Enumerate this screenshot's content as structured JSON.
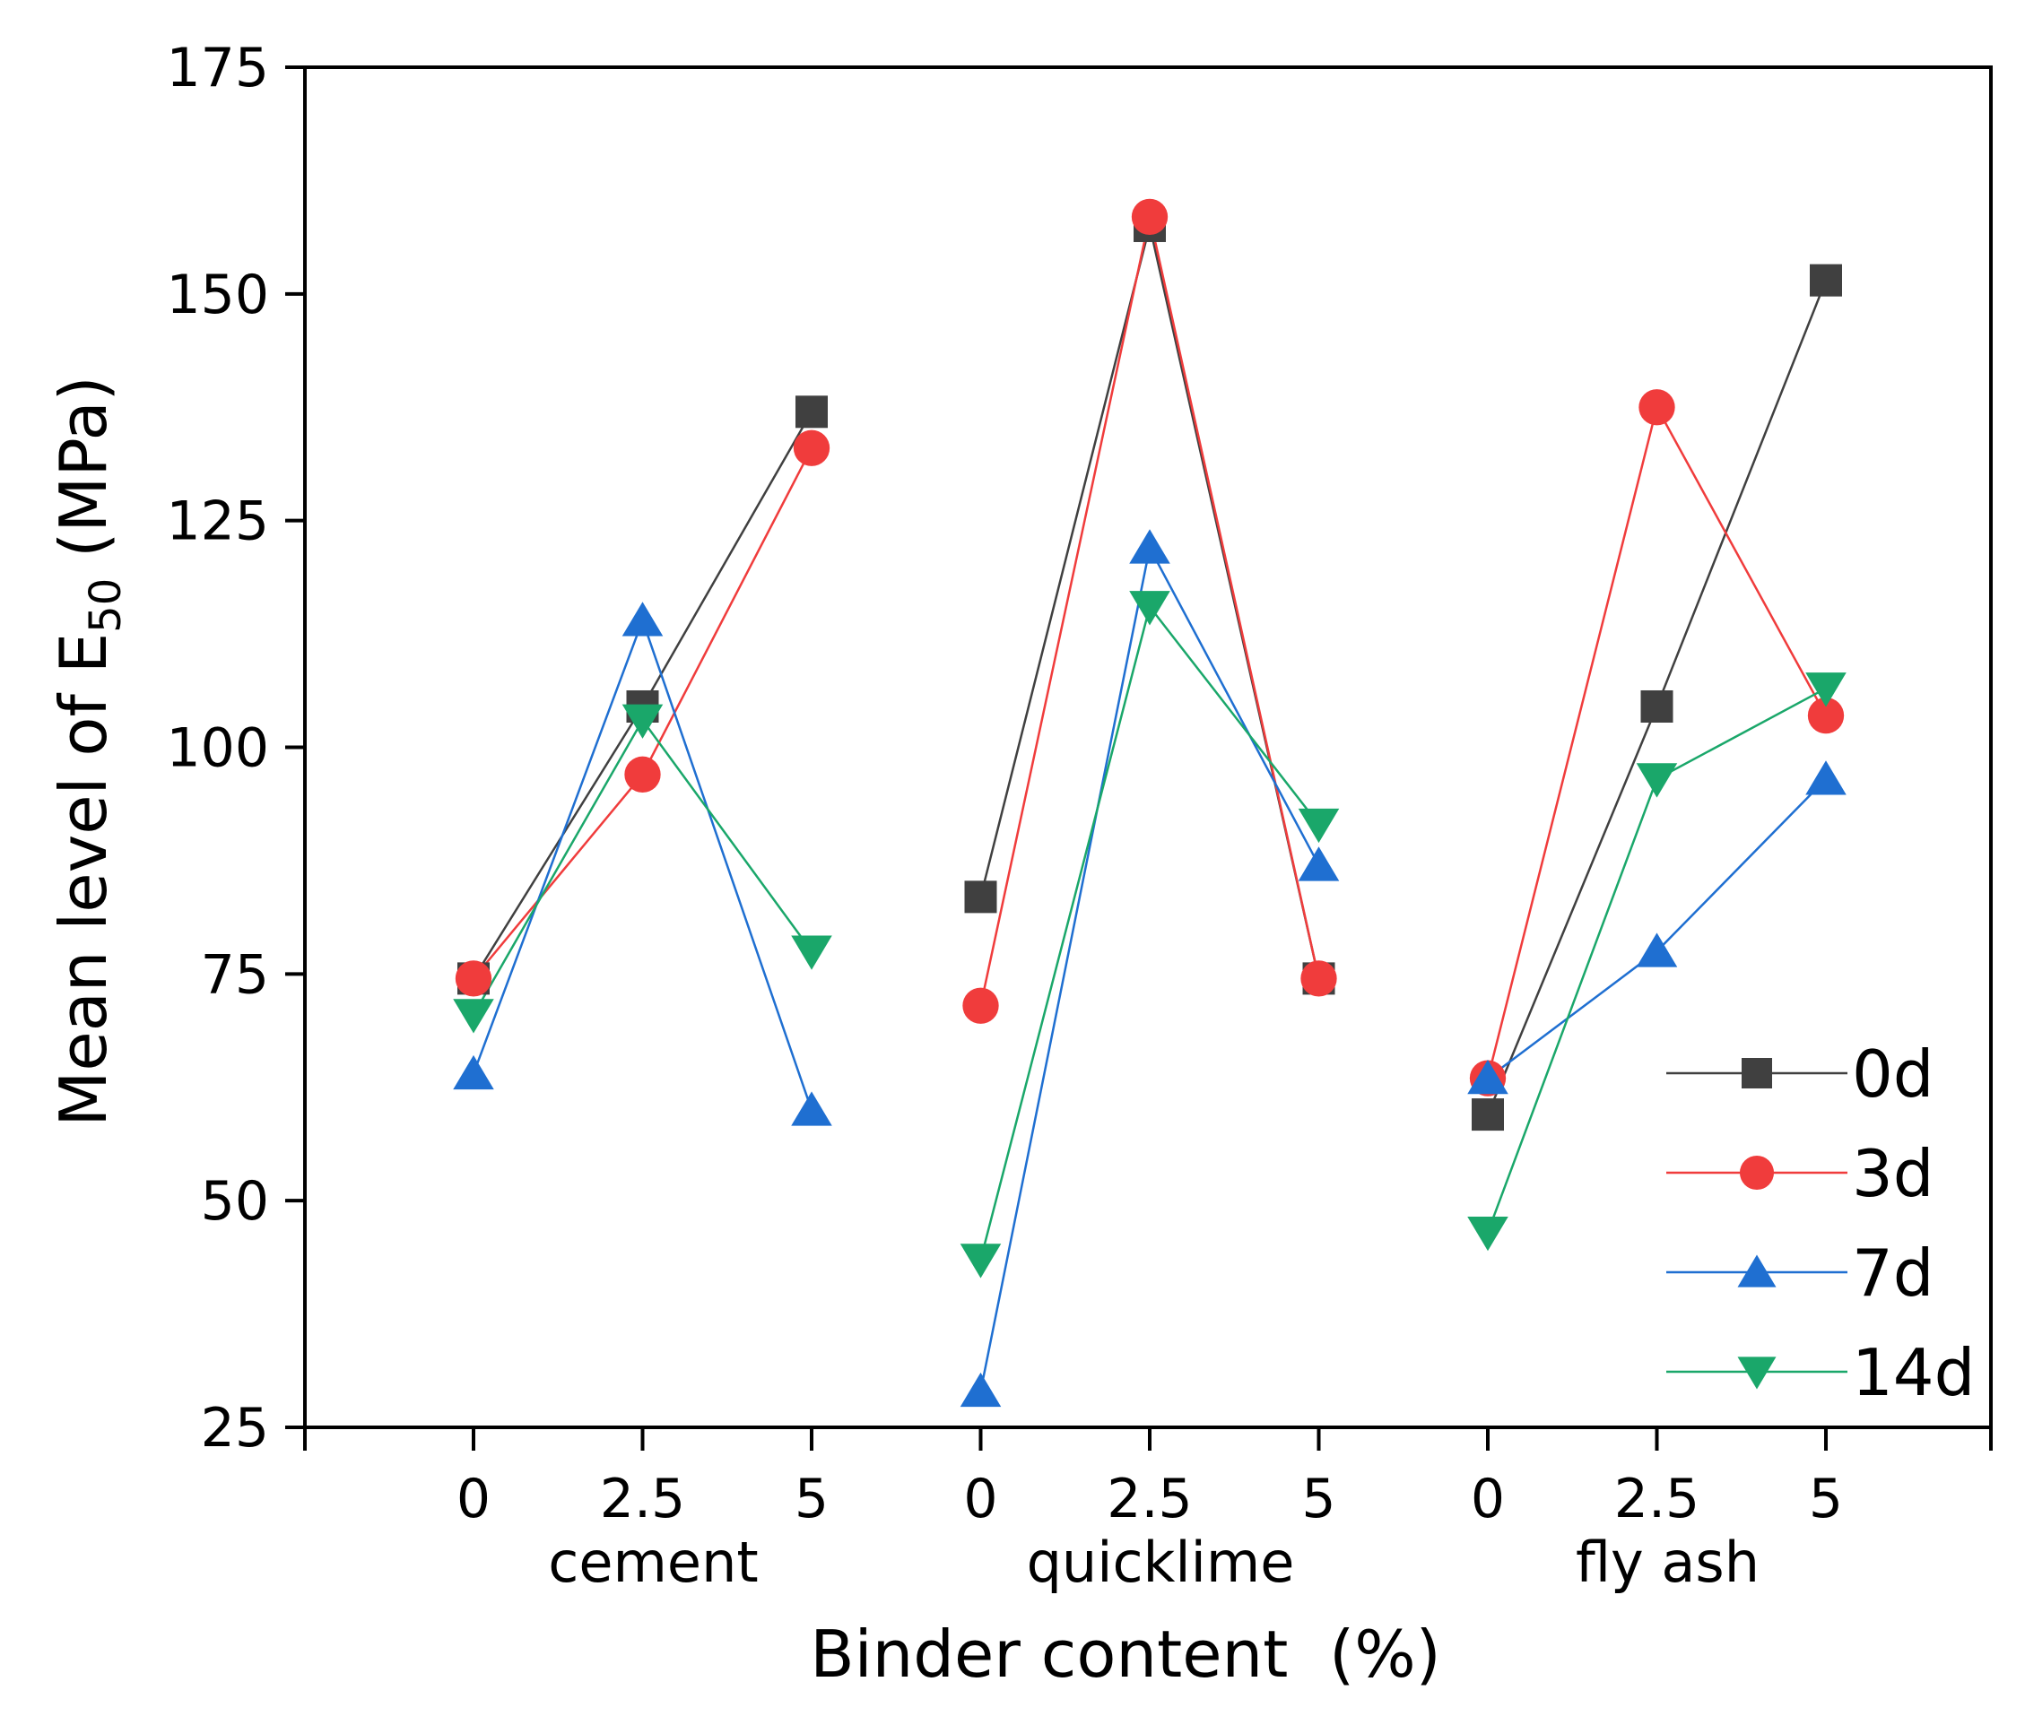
{
  "chart_data": {
    "type": "line",
    "title": "",
    "xlabel": "Binder content  (%)",
    "ylabel_prefix": "Mean level of E",
    "ylabel_subscript": "50",
    "ylabel_suffix": " (MPa)",
    "ylim": [
      25,
      175
    ],
    "yticks": [
      25,
      50,
      75,
      100,
      125,
      150,
      175
    ],
    "grid": false,
    "legend_position": "bottom-right",
    "groups": [
      {
        "name": "cement",
        "ticks": [
          "0",
          "2.5",
          "5"
        ]
      },
      {
        "name": "quicklime",
        "ticks": [
          "0",
          "2.5",
          "5"
        ]
      },
      {
        "name": "fly ash",
        "ticks": [
          "0",
          "2.5",
          "5"
        ]
      }
    ],
    "series": [
      {
        "name": "0d",
        "color": "#404040",
        "marker": "square",
        "values": [
          [
            74.5,
            104.5,
            137
          ],
          [
            83.5,
            157.5,
            74.5
          ],
          [
            59.5,
            104.5,
            151.5
          ]
        ]
      },
      {
        "name": "3d",
        "color": "#f03c3c",
        "marker": "circle",
        "values": [
          [
            74.5,
            97,
            133
          ],
          [
            71.5,
            158.5,
            74.5
          ],
          [
            63.5,
            137.5,
            103.5
          ]
        ]
      },
      {
        "name": "7d",
        "color": "#1f6fd1",
        "marker": "triangle-up",
        "values": [
          [
            64,
            114,
            60
          ],
          [
            29,
            122,
            87
          ],
          [
            63.5,
            77.5,
            96.5
          ]
        ]
      },
      {
        "name": "14d",
        "color": "#1aa76a",
        "marker": "triangle-down",
        "values": [
          [
            70.5,
            103,
            77.5
          ],
          [
            43.5,
            115.5,
            91.5
          ],
          [
            46.5,
            96.5,
            106.5
          ]
        ]
      }
    ]
  }
}
